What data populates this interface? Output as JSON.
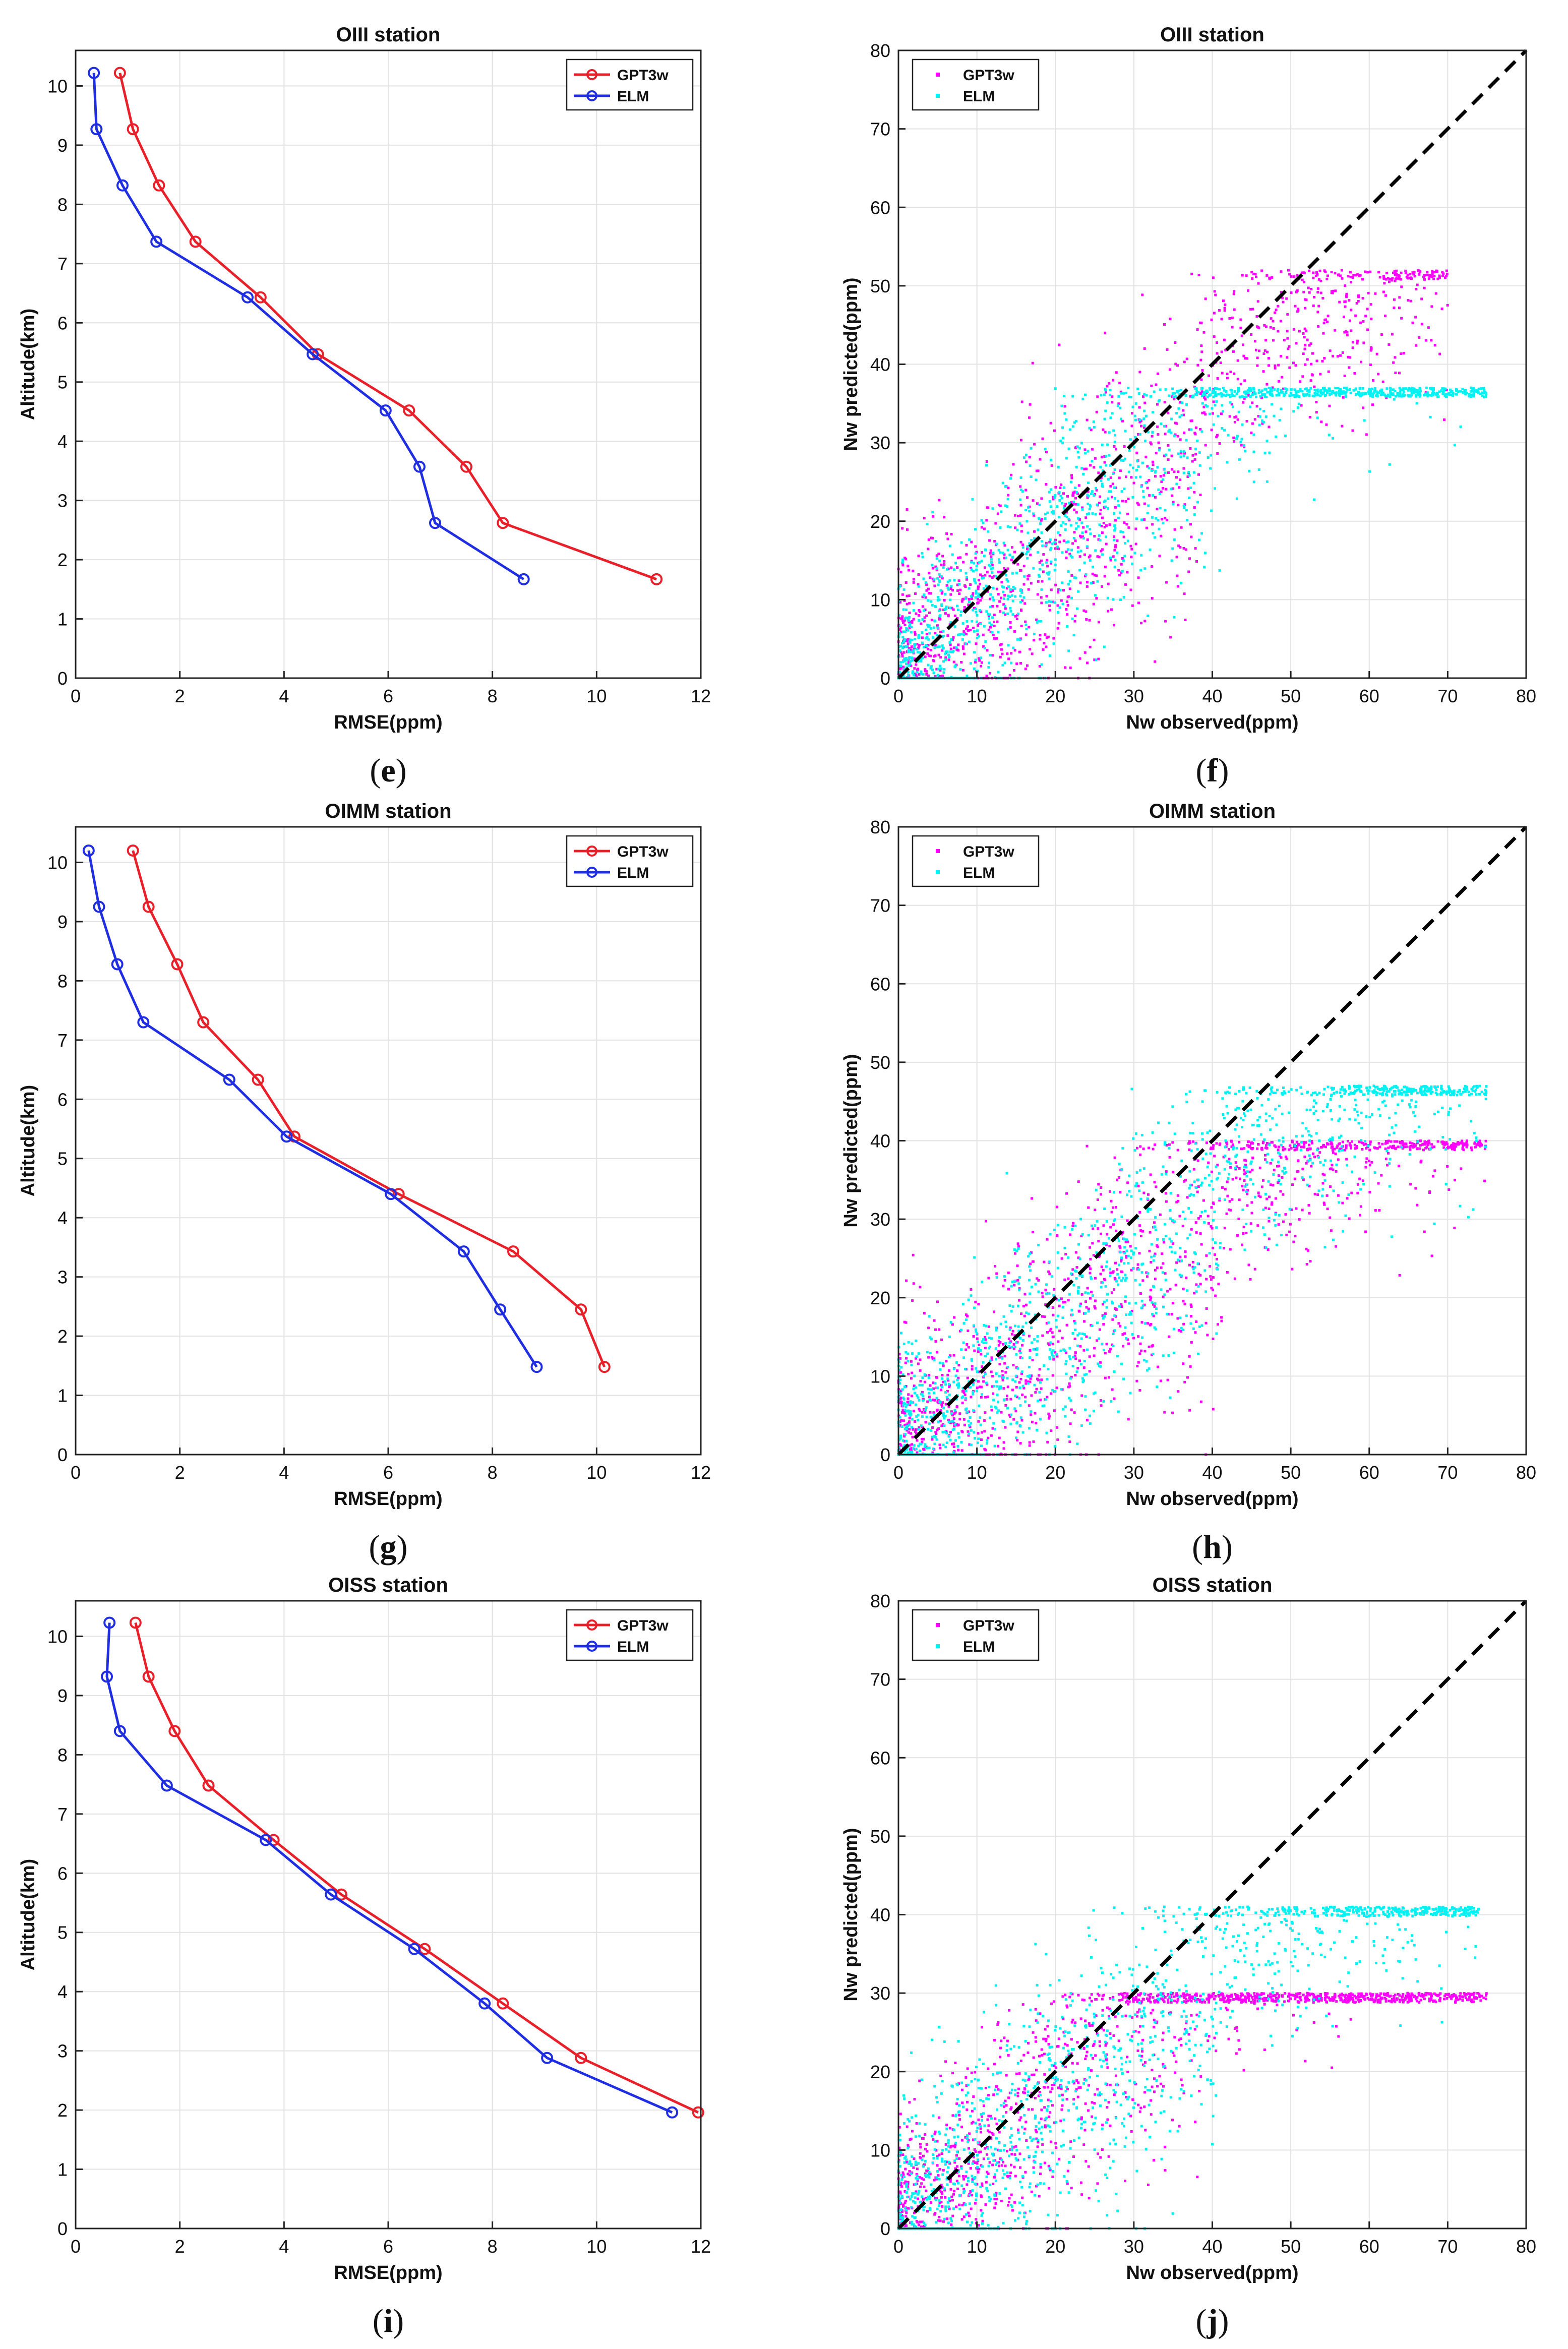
{
  "chart_data": [
    {
      "id": "e",
      "type": "line",
      "title": "OIII station",
      "xlabel": "RMSE(ppm)",
      "ylabel": "Altitude(km)",
      "xlim": [
        0,
        12
      ],
      "ylim": [
        0,
        10.6
      ],
      "xticks": [
        0,
        2,
        4,
        6,
        8,
        10,
        12
      ],
      "yticks": [
        0,
        1,
        2,
        3,
        4,
        5,
        6,
        7,
        8,
        9,
        10
      ],
      "grid": true,
      "legend": "top-right",
      "panel_label": "e",
      "series": [
        {
          "name": "GPT3w",
          "color": "#e8202a",
          "x": [
            0.85,
            1.1,
            1.6,
            2.3,
            3.55,
            4.65,
            6.4,
            7.5,
            8.2,
            11.15
          ],
          "y": [
            10.22,
            9.27,
            8.32,
            7.37,
            6.43,
            5.47,
            4.52,
            3.57,
            2.62,
            1.67
          ]
        },
        {
          "name": "ELM",
          "color": "#1f2ee0",
          "x": [
            0.35,
            0.4,
            0.9,
            1.55,
            3.3,
            4.55,
            5.95,
            6.6,
            6.9,
            8.6
          ],
          "y": [
            10.22,
            9.27,
            8.32,
            7.37,
            6.43,
            5.47,
            4.52,
            3.57,
            2.62,
            1.67
          ]
        }
      ]
    },
    {
      "id": "f",
      "type": "scatter",
      "title": "OIII station",
      "xlabel": "Nw observed(ppm)",
      "ylabel": "Nw predicted(ppm)",
      "xlim": [
        0,
        80
      ],
      "ylim": [
        0,
        80
      ],
      "xticks": [
        0,
        10,
        20,
        30,
        40,
        50,
        60,
        70,
        80
      ],
      "yticks": [
        0,
        10,
        20,
        30,
        40,
        50,
        60,
        70,
        80
      ],
      "grid": true,
      "legend": "top-left",
      "panel_label": "f",
      "series": [
        {
          "name": "GPT3w",
          "color": "#ff00ff",
          "cap": 52,
          "slope": 0.8,
          "spread": 7,
          "xmax": 70,
          "seed": 11
        },
        {
          "name": "ELM",
          "color": "#00f2f2",
          "cap": 37,
          "slope": 0.9,
          "spread": 6,
          "xmax": 75,
          "seed": 23
        }
      ]
    },
    {
      "id": "g",
      "type": "line",
      "title": "OIMM station",
      "xlabel": "RMSE(ppm)",
      "ylabel": "Altitude(km)",
      "xlim": [
        0,
        12
      ],
      "ylim": [
        0,
        10.6
      ],
      "xticks": [
        0,
        2,
        4,
        6,
        8,
        10,
        12
      ],
      "yticks": [
        0,
        1,
        2,
        3,
        4,
        5,
        6,
        7,
        8,
        9,
        10
      ],
      "grid": true,
      "legend": "top-right",
      "panel_label": "g",
      "series": [
        {
          "name": "GPT3w",
          "color": "#e8202a",
          "x": [
            1.1,
            1.4,
            1.95,
            2.45,
            3.5,
            4.2,
            6.2,
            8.4,
            9.7,
            10.15
          ],
          "y": [
            10.2,
            9.25,
            8.28,
            7.3,
            6.33,
            5.37,
            4.4,
            3.43,
            2.45,
            1.48
          ]
        },
        {
          "name": "ELM",
          "color": "#1f2ee0",
          "x": [
            0.25,
            0.45,
            0.8,
            1.3,
            2.95,
            4.05,
            6.05,
            7.45,
            8.15,
            8.85
          ],
          "y": [
            10.2,
            9.25,
            8.28,
            7.3,
            6.33,
            5.37,
            4.4,
            3.43,
            2.45,
            1.48
          ]
        }
      ]
    },
    {
      "id": "h",
      "type": "scatter",
      "title": "OIMM station",
      "xlabel": "Nw observed(ppm)",
      "ylabel": "Nw predicted(ppm)",
      "xlim": [
        0,
        80
      ],
      "ylim": [
        0,
        80
      ],
      "xticks": [
        0,
        10,
        20,
        30,
        40,
        50,
        60,
        70,
        80
      ],
      "yticks": [
        0,
        10,
        20,
        30,
        40,
        50,
        60,
        70,
        80
      ],
      "grid": true,
      "legend": "top-left",
      "panel_label": "h",
      "series": [
        {
          "name": "GPT3w",
          "color": "#ff00ff",
          "cap": 40,
          "slope": 0.75,
          "spread": 7,
          "xmax": 75,
          "seed": 37
        },
        {
          "name": "ELM",
          "color": "#00f2f2",
          "cap": 47,
          "slope": 0.8,
          "spread": 6,
          "xmax": 75,
          "seed": 41
        }
      ]
    },
    {
      "id": "i",
      "type": "line",
      "title": "OISS station",
      "xlabel": "RMSE(ppm)",
      "ylabel": "Altitude(km)",
      "xlim": [
        0,
        12
      ],
      "ylim": [
        0,
        10.6
      ],
      "xticks": [
        0,
        2,
        4,
        6,
        8,
        10,
        12
      ],
      "yticks": [
        0,
        1,
        2,
        3,
        4,
        5,
        6,
        7,
        8,
        9,
        10
      ],
      "grid": true,
      "legend": "top-right",
      "panel_label": "i",
      "series": [
        {
          "name": "GPT3w",
          "color": "#e8202a",
          "x": [
            1.15,
            1.4,
            1.9,
            2.55,
            3.8,
            5.1,
            6.7,
            8.2,
            9.7,
            11.95
          ],
          "y": [
            10.23,
            9.32,
            8.4,
            7.48,
            6.56,
            5.64,
            4.72,
            3.8,
            2.88,
            1.96
          ]
        },
        {
          "name": "ELM",
          "color": "#1f2ee0",
          "x": [
            0.65,
            0.6,
            0.85,
            1.75,
            3.65,
            4.9,
            6.5,
            7.85,
            9.05,
            11.45
          ],
          "y": [
            10.23,
            9.32,
            8.4,
            7.48,
            6.56,
            5.64,
            4.72,
            3.8,
            2.88,
            1.96
          ]
        }
      ]
    },
    {
      "id": "j",
      "type": "scatter",
      "title": "OISS station",
      "xlabel": "Nw observed(ppm)",
      "ylabel": "Nw predicted(ppm)",
      "xlim": [
        0,
        80
      ],
      "ylim": [
        0,
        80
      ],
      "xticks": [
        0,
        10,
        20,
        30,
        40,
        50,
        60,
        70,
        80
      ],
      "yticks": [
        0,
        10,
        20,
        30,
        40,
        50,
        60,
        70,
        80
      ],
      "grid": true,
      "legend": "top-left",
      "panel_label": "j",
      "series": [
        {
          "name": "GPT3w",
          "color": "#ff00ff",
          "cap": 30,
          "slope": 0.85,
          "spread": 6,
          "xmax": 75,
          "seed": 53
        },
        {
          "name": "ELM",
          "color": "#00f2f2",
          "cap": 41,
          "slope": 0.8,
          "spread": 7,
          "xmax": 74,
          "seed": 67
        }
      ]
    }
  ],
  "diagonal": {
    "x": [
      0,
      80
    ],
    "y": [
      0,
      80
    ],
    "color": "#000000",
    "style": "dashed"
  }
}
